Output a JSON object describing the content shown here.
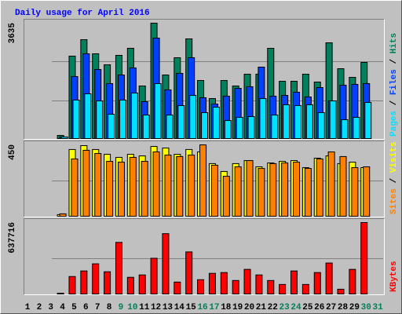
{
  "title": "Daily usage for April 2016",
  "chart_data": [
    {
      "type": "bar",
      "ylim": [
        0,
        3635
      ],
      "yticks": [
        3635
      ],
      "grid_divisions": 3,
      "legend_separator": " / ",
      "series": [
        {
          "name": "Hits",
          "color": "#00805c",
          "values": [
            null,
            null,
            null,
            123,
            2603,
            3119,
            2677,
            2333,
            2628,
            2849,
            1670,
            3635,
            2014,
            2554,
            3144,
            1842,
            1277,
            1842,
            1670,
            2038,
            2038,
            2849,
            1817,
            1817,
            2038,
            1793,
            3021,
            2210,
            1940,
            2407,
            null
          ]
        },
        {
          "name": "Files",
          "color": "#0040ff",
          "values": [
            null,
            null,
            null,
            74,
            1965,
            2677,
            2186,
            1744,
            2014,
            2235,
            1179,
            3168,
            1547,
            2063,
            2554,
            1302,
            1105,
            1351,
            1596,
            1646,
            2260,
            1351,
            1375,
            1474,
            1326,
            1621,
            1203,
            1695,
            1719,
            1744,
            null
          ]
        },
        {
          "name": "Pages",
          "color": "#00e0ff",
          "values": [
            null,
            null,
            null,
            74,
            1228,
            1424,
            1203,
            786,
            1228,
            1449,
            761,
            1744,
            761,
            1056,
            1375,
            835,
            1007,
            589,
            688,
            712,
            1277,
            761,
            1081,
            1056,
            1081,
            835,
            1203,
            614,
            688,
            1154,
            null
          ]
        }
      ]
    },
    {
      "type": "bar",
      "ylim": [
        0,
        450
      ],
      "yticks": [
        450
      ],
      "grid_divisions": 2,
      "legend_separator": " / ",
      "series": [
        {
          "name": "Visits",
          "color": "#ffff00",
          "values": [
            null,
            null,
            null,
            15,
            421,
            445,
            421,
            391,
            372,
            391,
            381,
            440,
            430,
            391,
            421,
            406,
            333,
            284,
            333,
            352,
            313,
            337,
            347,
            352,
            308,
            367,
            381,
            333,
            342,
            308,
            null
          ]
        },
        {
          "name": "Sites",
          "color": "#ff8000",
          "values": [
            null,
            null,
            null,
            20,
            362,
            416,
            396,
            347,
            342,
            372,
            347,
            406,
            386,
            377,
            386,
            450,
            323,
            254,
            313,
            352,
            303,
            333,
            337,
            342,
            303,
            362,
            406,
            377,
            308,
            313,
            null
          ]
        }
      ]
    },
    {
      "type": "bar",
      "ylim": [
        0,
        637716
      ],
      "yticks": [
        637716
      ],
      "grid_divisions": 2,
      "categories": [
        "1",
        "2",
        "3",
        "4",
        "5",
        "6",
        "7",
        "8",
        "9",
        "10",
        "11",
        "12",
        "13",
        "14",
        "15",
        "16",
        "17",
        "18",
        "19",
        "20",
        "21",
        "22",
        "23",
        "24",
        "25",
        "26",
        "27",
        "28",
        "29",
        "30",
        "31"
      ],
      "category_colors": [
        "#000000",
        "#000000",
        "#000000",
        "#000000",
        "#000000",
        "#000000",
        "#000000",
        "#000000",
        "#00805c",
        "#00805c",
        "#000000",
        "#000000",
        "#000000",
        "#000000",
        "#000000",
        "#00805c",
        "#00805c",
        "#000000",
        "#000000",
        "#000000",
        "#000000",
        "#000000",
        "#00805c",
        "#00805c",
        "#000000",
        "#000000",
        "#000000",
        "#000000",
        "#000000",
        "#00805c",
        "#00805c"
      ],
      "series": [
        {
          "name": "KBytes",
          "color": "#ff0000",
          "values": [
            null,
            null,
            null,
            14016,
            161184,
            210240,
            273312,
            203232,
            462528,
            154176,
            175200,
            322368,
            539616,
            112128,
            378432,
            133152,
            189216,
            196224,
            126144,
            224256,
            175200,
            126144,
            91104,
            210240,
            91104,
            196224,
            280320,
            49056,
            224256,
            637716,
            null
          ]
        }
      ]
    }
  ]
}
